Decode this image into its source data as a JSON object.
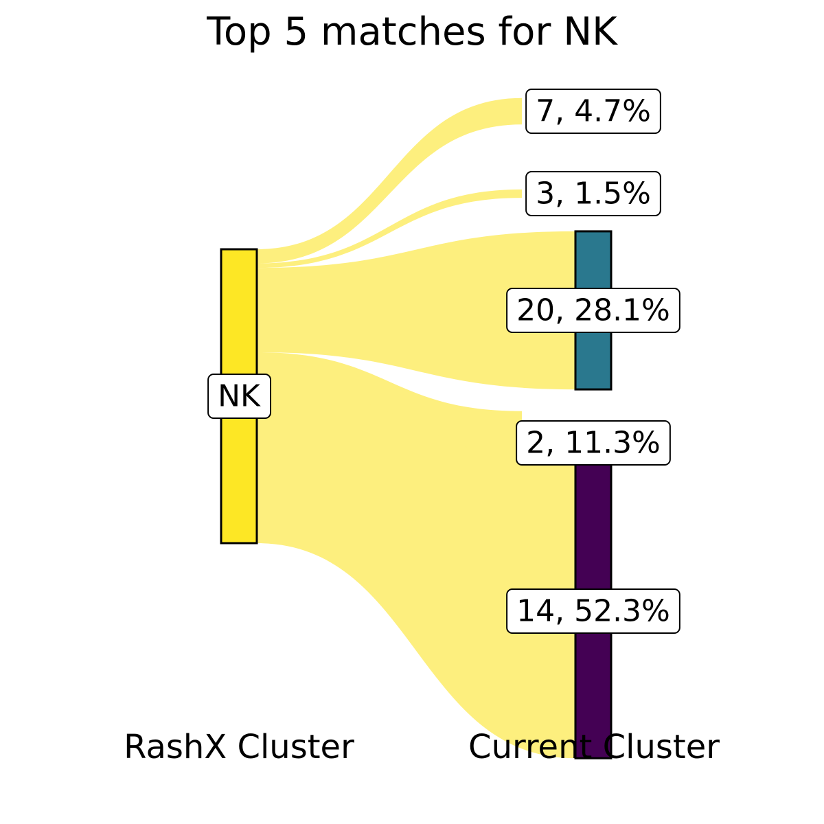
{
  "chart_data": {
    "type": "sankey",
    "title": "Top 5 matches for NK",
    "xlabel_left": "RashX Cluster",
    "xlabel_right": "Current Cluster",
    "source": {
      "name": "NK",
      "color": "#fde725"
    },
    "flow_color": "#fdef7e",
    "targets": [
      {
        "cluster": "7",
        "percent": 4.7,
        "label": "7, 4.7%",
        "color": "#fde725",
        "show_bar": false
      },
      {
        "cluster": "3",
        "percent": 1.5,
        "label": "3, 1.5%",
        "color": "#fde725",
        "show_bar": false
      },
      {
        "cluster": "20",
        "percent": 28.1,
        "label": "20, 28.1%",
        "color": "#2a788e",
        "show_bar": true
      },
      {
        "cluster": "2",
        "percent": 11.3,
        "label": "2, 11.3%",
        "color": "#fde725",
        "show_bar": false
      },
      {
        "cluster": "14",
        "percent": 52.3,
        "label": "14, 52.3%",
        "color": "#440154",
        "show_bar": true
      }
    ]
  }
}
